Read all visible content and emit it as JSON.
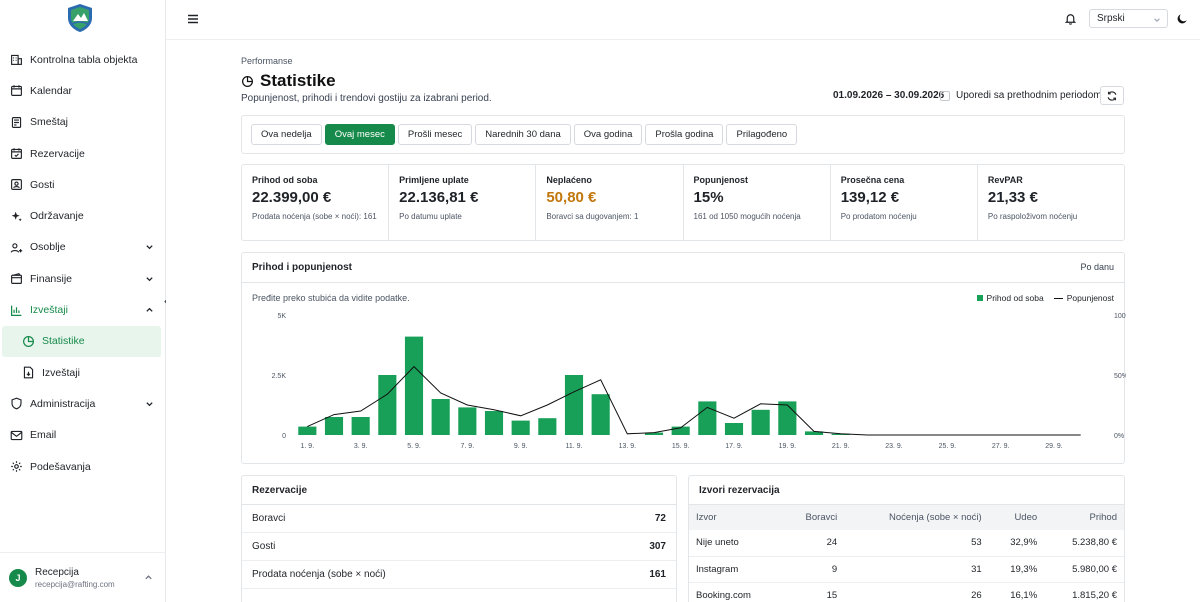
{
  "sidebar": {
    "items": [
      {
        "label": "Kontrolna tabla objekta",
        "icon": "building-icon"
      },
      {
        "label": "Kalendar",
        "icon": "calendar-icon"
      },
      {
        "label": "Smeštaj",
        "icon": "bed-icon"
      },
      {
        "label": "Rezervacije",
        "icon": "calendar-check-icon"
      },
      {
        "label": "Gosti",
        "icon": "user-card-icon"
      },
      {
        "label": "Održavanje",
        "icon": "sparkle-icon"
      },
      {
        "label": "Osoblje",
        "icon": "users-icon"
      },
      {
        "label": "Finansije",
        "icon": "wallet-icon"
      },
      {
        "label": "Izveštaji",
        "icon": "bar-chart-icon"
      },
      {
        "label": "Statistike",
        "icon": "pie-chart-icon"
      },
      {
        "label": "Izveštaji",
        "icon": "file-icon"
      },
      {
        "label": "Administracija",
        "icon": "shield-icon"
      },
      {
        "label": "Email",
        "icon": "mail-icon"
      },
      {
        "label": "Podešavanja",
        "icon": "gear-icon"
      }
    ],
    "user": {
      "initial": "J",
      "name": "Recepcija",
      "email": "recepcija@rafting.com"
    }
  },
  "topbar": {
    "language": "Srpski"
  },
  "header": {
    "breadcrumb": "Performanse",
    "title": "Statistike",
    "subtitle": "Popunjenost, prihodi i trendovi gostiju za izabrani period.",
    "date_range": "01.09.2026 – 30.09.2026",
    "compare_label": "Uporedi sa prethodnim periodom"
  },
  "tabs": [
    "Ova nedelja",
    "Ovaj mesec",
    "Prošli mesec",
    "Narednih 30 dana",
    "Ova godina",
    "Prošla godina",
    "Prilagođeno"
  ],
  "active_tab": 1,
  "kpis": [
    {
      "label": "Prihod od soba",
      "value": "22.399,00 €",
      "sub": "Prodata noćenja (sobe × noći): 161"
    },
    {
      "label": "Primljene uplate",
      "value": "22.136,81 €",
      "sub": "Po datumu uplate"
    },
    {
      "label": "Neplaćeno",
      "value": "50,80 €",
      "sub": "Boravci sa dugovanjem: 1",
      "color": "#c2760c"
    },
    {
      "label": "Popunjenost",
      "value": "15%",
      "sub": "161 od 1050 mogućih noćenja"
    },
    {
      "label": "Prosečna cena",
      "value": "139,12 €",
      "sub": "Po prodatom noćenju"
    },
    {
      "label": "RevPAR",
      "value": "21,33 €",
      "sub": "Po raspoloživom noćenju"
    }
  ],
  "chart": {
    "title": "Prihod i popunjenost",
    "period": "Po danu",
    "hint": "Pređite preko stubića da vidite podatke.",
    "legend_bar": "Prihod od soba",
    "legend_line": "Popunjenost"
  },
  "chart_data": {
    "type": "bar",
    "categories": [
      "1. 9.",
      "2. 9.",
      "3. 9.",
      "4. 9.",
      "5. 9.",
      "6. 9.",
      "7. 9.",
      "8. 9.",
      "9. 9.",
      "10. 9.",
      "11. 9.",
      "12. 9.",
      "13. 9.",
      "14. 9.",
      "15. 9.",
      "16. 9.",
      "17. 9.",
      "18. 9.",
      "19. 9.",
      "20. 9.",
      "21. 9.",
      "22. 9.",
      "23. 9.",
      "24. 9.",
      "25. 9.",
      "26. 9.",
      "27. 9.",
      "28. 9.",
      "29. 9.",
      "30. 9."
    ],
    "tick_labels": [
      "1. 9.",
      "3. 9.",
      "5. 9.",
      "7. 9.",
      "9. 9.",
      "11. 9.",
      "13. 9.",
      "15. 9.",
      "17. 9.",
      "19. 9.",
      "21. 9.",
      "23. 9.",
      "25. 9.",
      "27. 9.",
      "29. 9."
    ],
    "series": [
      {
        "name": "Prihod od soba",
        "type": "bar",
        "axis": "left",
        "values": [
          350,
          750,
          750,
          2500,
          4100,
          1500,
          1150,
          1000,
          600,
          700,
          2500,
          1700,
          0,
          100,
          350,
          1400,
          500,
          1050,
          1400,
          150,
          50,
          0,
          0,
          0,
          0,
          0,
          0,
          0,
          0,
          0
        ]
      },
      {
        "name": "Popunjenost",
        "type": "line",
        "axis": "right",
        "values": [
          7,
          17,
          20,
          34,
          57,
          35,
          25,
          21,
          16,
          25,
          36,
          46,
          1,
          2,
          6,
          23,
          14,
          26,
          25,
          3,
          1,
          0,
          0,
          0,
          0,
          0,
          0,
          0,
          0,
          0
        ]
      }
    ],
    "y_left": {
      "min": 0,
      "max": 5000,
      "ticks": [
        "0",
        "2.5K",
        "5K"
      ]
    },
    "y_right": {
      "min": 0,
      "max": 100,
      "ticks": [
        "0%",
        "50%",
        "100%"
      ]
    },
    "bar_color": "#18a058",
    "line_color": "#111111"
  },
  "reservations": {
    "title": "Rezervacije",
    "rows": [
      {
        "label": "Boravci",
        "value": "72"
      },
      {
        "label": "Gosti",
        "value": "307"
      },
      {
        "label": "Prodata noćenja (sobe × noći)",
        "value": "161"
      }
    ]
  },
  "sources": {
    "title": "Izvori rezervacija",
    "headers": [
      "Izvor",
      "Boravci",
      "Noćenja (sobe × noći)",
      "Udeo",
      "Prihod"
    ],
    "rows": [
      [
        "Nije uneto",
        "24",
        "53",
        "32,9%",
        "5.238,80 €"
      ],
      [
        "Instagram",
        "9",
        "31",
        "19,3%",
        "5.980,00 €"
      ],
      [
        "Booking.com",
        "15",
        "26",
        "16,1%",
        "1.815,20 €"
      ]
    ]
  }
}
